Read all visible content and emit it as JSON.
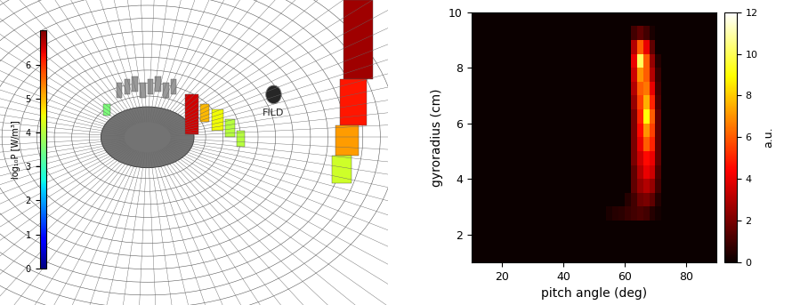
{
  "wall_rendering": {
    "colorbar_label": "log₁₀P [W/m³]",
    "colorbar_range": [
      0,
      7
    ],
    "colorbar_ticks": [
      0,
      1,
      2,
      3,
      4,
      5,
      6
    ],
    "marker_label": "FILD",
    "deposits": [
      6.5,
      5.0,
      4.5,
      4.0,
      3.5,
      6.8,
      6.2,
      5.2,
      4.2,
      4.0
    ]
  },
  "chart_data": {
    "type": "heatmap",
    "xlabel": "pitch angle (deg)",
    "ylabel": "gyroradius (cm)",
    "xlim": [
      10,
      90
    ],
    "xticks": [
      20,
      40,
      60,
      80
    ],
    "ylim": [
      1,
      10
    ],
    "yticks": [
      2,
      4,
      6,
      8,
      10
    ],
    "colorbar_label": "a.u.",
    "colorbar_range": [
      0,
      12
    ],
    "colorbar_ticks": [
      0,
      2,
      4,
      6,
      8,
      10,
      12
    ],
    "x_edges": [
      10,
      12,
      14,
      16,
      18,
      20,
      22,
      24,
      26,
      28,
      30,
      32,
      34,
      36,
      38,
      40,
      42,
      44,
      46,
      48,
      50,
      52,
      54,
      56,
      58,
      60,
      62,
      64,
      66,
      68,
      70,
      72,
      74,
      76,
      78,
      80,
      82,
      84,
      86,
      88,
      90
    ],
    "y_edges": [
      1,
      1.5,
      2,
      2.5,
      3,
      3.5,
      4,
      4.5,
      5,
      5.5,
      6,
      6.5,
      7,
      7.5,
      8,
      8.5,
      9,
      9.5,
      10
    ],
    "cells": [
      [
        0,
        0,
        0,
        0,
        0,
        0,
        0,
        0,
        0,
        0,
        0,
        0,
        0,
        0,
        0,
        0,
        0,
        0,
        0,
        0,
        0,
        0,
        0,
        0,
        0,
        0,
        0,
        0,
        0,
        0,
        0,
        0,
        0,
        0,
        0,
        0,
        0,
        0,
        0,
        0
      ],
      [
        0,
        0,
        0,
        0,
        0,
        0,
        0,
        0,
        0,
        0,
        0,
        0,
        0,
        0,
        0,
        0,
        0,
        0,
        0,
        0,
        0,
        0,
        0,
        0,
        0,
        0,
        0,
        0,
        0,
        0,
        0,
        0,
        0,
        0,
        0,
        0,
        0,
        0,
        0,
        0
      ],
      [
        0,
        0,
        0,
        0,
        0,
        0,
        0,
        0,
        0,
        0,
        0,
        0,
        0,
        0,
        0,
        0,
        0,
        0,
        0,
        0,
        0,
        0,
        0,
        0,
        0,
        0,
        0,
        0,
        0,
        0,
        0,
        0,
        0,
        0,
        0,
        0,
        0,
        0,
        0,
        0
      ],
      [
        0,
        0,
        0,
        0,
        0,
        0,
        0,
        0,
        0,
        0,
        0,
        0,
        0,
        0,
        0,
        0,
        0,
        0,
        0,
        0,
        0,
        0,
        0.3,
        0.5,
        0.6,
        0.8,
        1,
        1.2,
        1,
        0.5,
        0.2,
        0,
        0,
        0,
        0,
        0,
        0,
        0,
        0,
        0
      ],
      [
        0,
        0,
        0,
        0,
        0,
        0,
        0,
        0,
        0,
        0,
        0,
        0,
        0,
        0,
        0,
        0,
        0,
        0,
        0,
        0,
        0,
        0,
        0,
        0,
        0,
        0.5,
        1,
        1.8,
        2,
        1.5,
        0.5,
        0,
        0,
        0,
        0,
        0,
        0,
        0,
        0,
        0
      ],
      [
        0,
        0,
        0,
        0,
        0,
        0,
        0,
        0,
        0,
        0,
        0,
        0,
        0,
        0,
        0,
        0,
        0,
        0,
        0,
        0,
        0,
        0,
        0,
        0,
        0,
        0,
        1.5,
        2.5,
        3,
        2.5,
        1,
        0,
        0,
        0,
        0,
        0,
        0,
        0,
        0,
        0
      ],
      [
        0,
        0,
        0,
        0,
        0,
        0,
        0,
        0,
        0,
        0,
        0,
        0,
        0,
        0,
        0,
        0,
        0,
        0,
        0,
        0,
        0,
        0,
        0,
        0,
        0,
        0,
        1.5,
        3,
        4,
        3.5,
        1.2,
        0,
        0,
        0,
        0,
        0,
        0,
        0,
        0,
        0
      ],
      [
        0,
        0,
        0,
        0,
        0,
        0,
        0,
        0,
        0,
        0,
        0,
        0,
        0,
        0,
        0,
        0,
        0,
        0,
        0,
        0,
        0,
        0,
        0,
        0,
        0,
        0,
        2,
        3.5,
        4.5,
        4,
        1.5,
        0,
        0,
        0,
        0,
        0,
        0,
        0,
        0,
        0
      ],
      [
        0,
        0,
        0,
        0,
        0,
        0,
        0,
        0,
        0,
        0,
        0,
        0,
        0,
        0,
        0,
        0,
        0,
        0,
        0,
        0,
        0,
        0,
        0,
        0,
        0,
        0,
        2,
        4,
        6,
        5,
        1.5,
        0,
        0,
        0,
        0,
        0,
        0,
        0,
        0,
        0
      ],
      [
        0,
        0,
        0,
        0,
        0,
        0,
        0,
        0,
        0,
        0,
        0,
        0,
        0,
        0,
        0,
        0,
        0,
        0,
        0,
        0,
        0,
        0,
        0,
        0,
        0,
        0,
        2,
        4.5,
        7,
        5.5,
        1.5,
        0,
        0,
        0,
        0,
        0,
        0,
        0,
        0,
        0
      ],
      [
        0,
        0,
        0,
        0,
        0,
        0,
        0,
        0,
        0,
        0,
        0,
        0,
        0,
        0,
        0,
        0,
        0,
        0,
        0,
        0,
        0,
        0,
        0,
        0,
        0,
        0,
        2,
        5,
        9,
        6,
        1.5,
        0,
        0,
        0,
        0,
        0,
        0,
        0,
        0,
        0
      ],
      [
        0,
        0,
        0,
        0,
        0,
        0,
        0,
        0,
        0,
        0,
        0,
        0,
        0,
        0,
        0,
        0,
        0,
        0,
        0,
        0,
        0,
        0,
        0,
        0,
        0,
        0,
        2.5,
        5.5,
        7.5,
        5,
        1.2,
        0,
        0,
        0,
        0,
        0,
        0,
        0,
        0,
        0
      ],
      [
        0,
        0,
        0,
        0,
        0,
        0,
        0,
        0,
        0,
        0,
        0,
        0,
        0,
        0,
        0,
        0,
        0,
        0,
        0,
        0,
        0,
        0,
        0,
        0,
        0,
        0,
        3,
        6,
        6.5,
        4,
        1,
        0,
        0,
        0,
        0,
        0,
        0,
        0,
        0,
        0
      ],
      [
        0,
        0,
        0,
        0,
        0,
        0,
        0,
        0,
        0,
        0,
        0,
        0,
        0,
        0,
        0,
        0,
        0,
        0,
        0,
        0,
        0,
        0,
        0,
        0,
        0,
        0,
        3.5,
        7,
        6,
        3,
        0.8,
        0,
        0,
        0,
        0,
        0,
        0,
        0,
        0,
        0
      ],
      [
        0,
        0,
        0,
        0,
        0,
        0,
        0,
        0,
        0,
        0,
        0,
        0,
        0,
        0,
        0,
        0,
        0,
        0,
        0,
        0,
        0,
        0,
        0,
        0,
        0,
        0,
        4,
        10,
        6,
        2.5,
        0.5,
        0,
        0,
        0,
        0,
        0,
        0,
        0,
        0,
        0
      ],
      [
        0,
        0,
        0,
        0,
        0,
        0,
        0,
        0,
        0,
        0,
        0,
        0,
        0,
        0,
        0,
        0,
        0,
        0,
        0,
        0,
        0,
        0,
        0,
        0,
        0,
        0,
        3,
        6,
        4,
        1.5,
        0,
        0,
        0,
        0,
        0,
        0,
        0,
        0,
        0,
        0
      ],
      [
        0,
        0,
        0,
        0,
        0,
        0,
        0,
        0,
        0,
        0,
        0,
        0,
        0,
        0,
        0,
        0,
        0,
        0,
        0,
        0,
        0,
        0,
        0,
        0,
        0,
        0,
        1,
        1.5,
        1,
        0.3,
        0,
        0,
        0,
        0,
        0,
        0,
        0,
        0,
        0,
        0
      ],
      [
        0,
        0,
        0,
        0,
        0,
        0,
        0,
        0,
        0,
        0,
        0,
        0,
        0,
        0,
        0,
        0,
        0,
        0,
        0,
        0,
        0,
        0,
        0,
        0,
        0,
        0,
        0,
        0,
        0,
        0,
        0,
        0,
        0,
        0,
        0,
        0,
        0,
        0,
        0,
        0
      ]
    ]
  }
}
